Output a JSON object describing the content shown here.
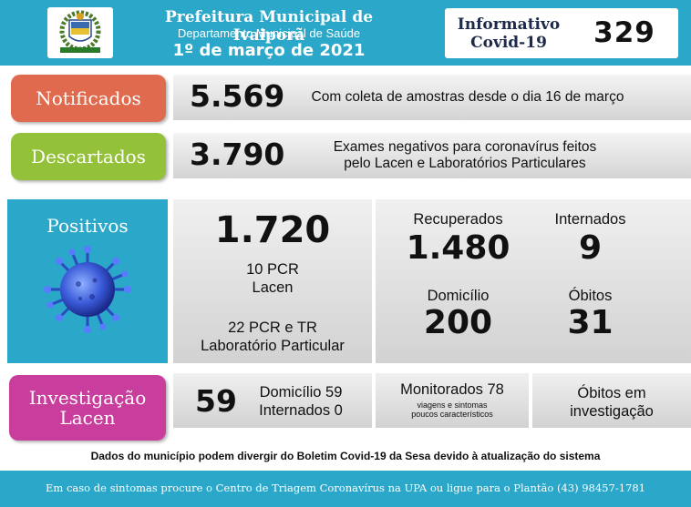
{
  "header": {
    "title": "Prefeitura Municipal de Ivaiporã",
    "department": "Departamento Municipal de Saúde",
    "date": "1º de março de 2021",
    "info_line1": "Informativo",
    "info_line2": "Covid-19",
    "bulletin_number": "329",
    "logo_icon": "municipal-coat-of-arms-icon"
  },
  "notificados": {
    "label": "Notificados",
    "value": "5.569",
    "description": "Com coleta de amostras desde o dia 16 de março",
    "color": "#e06a4e"
  },
  "descartados": {
    "label": "Descartados",
    "value": "3.790",
    "description_line1": "Exames negativos para coronavírus feitos",
    "description_line2": "pelo Lacen e Laboratórios Particulares",
    "color": "#94c13a"
  },
  "positivos": {
    "label": "Positivos",
    "value": "1.720",
    "lacen_line1": "10 PCR",
    "lacen_line2": "Lacen",
    "lab_line1": "22 PCR e TR",
    "lab_line2": "Laboratório Particular",
    "virus_icon": "coronavirus-icon",
    "color": "#2ba7c9"
  },
  "recuperados": {
    "label": "Recuperados",
    "value": "1.480"
  },
  "internados": {
    "label": "Internados",
    "value": "9"
  },
  "domicilio": {
    "label": "Domicílio",
    "value": "200"
  },
  "obitos": {
    "label": "Óbitos",
    "value": "31"
  },
  "investigacao": {
    "label_line1": "Investigação",
    "label_line2": "Lacen",
    "value": "59",
    "domicilio": "Domicílio 59",
    "internados": "Internados 0",
    "monitorados": "Monitorados 78",
    "monitorados_note1": "viagens e sintomas",
    "monitorados_note2": "poucos característicos",
    "obitos_line1": "Óbitos em",
    "obitos_line2": "investigação",
    "color": "#c93e9c"
  },
  "note": "Dados do município podem divergir do Boletim Covid-19 da Sesa devido à atualização do sistema",
  "footer": "Em caso de sintomas procure o Centro de Triagem Coronavírus na UPA ou ligue para o Plantão (43) 98457-1781"
}
